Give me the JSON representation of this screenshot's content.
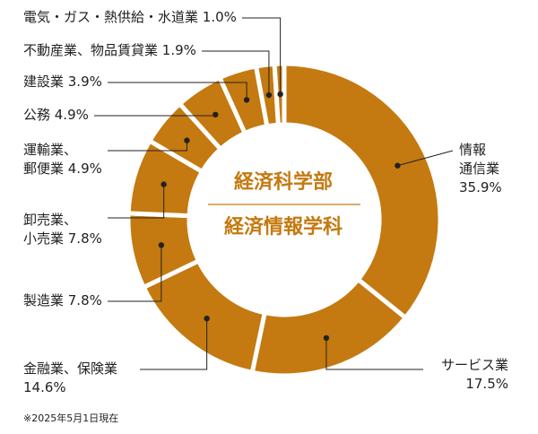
{
  "chart_data": {
    "type": "pie",
    "donut": true,
    "center_title_1": "経済科学部",
    "center_title_2": "経済情報学科",
    "slices": [
      {
        "label_lines": [
          "情報",
          "通信業",
          "35.9%"
        ],
        "value": 35.9
      },
      {
        "label_lines": [
          "サービス業",
          "17.5%"
        ],
        "value": 17.5
      },
      {
        "label_lines": [
          "金融業、保険業",
          "14.6%"
        ],
        "value": 14.6
      },
      {
        "label_lines": [
          "製造業 7.8%"
        ],
        "value": 7.8
      },
      {
        "label_lines": [
          "卸売業、",
          "小売業 7.8%"
        ],
        "value": 7.8
      },
      {
        "label_lines": [
          "運輸業、",
          "郵便業 4.9%"
        ],
        "value": 4.9
      },
      {
        "label_lines": [
          "公務 4.9%"
        ],
        "value": 4.9
      },
      {
        "label_lines": [
          "建設業 3.9%"
        ],
        "value": 3.9
      },
      {
        "label_lines": [
          "不動産業、物品賃貸業 1.9%"
        ],
        "value": 1.9
      },
      {
        "label_lines": [
          "電気・ガス・熱供給・水道業 1.0%"
        ],
        "value": 1.0
      }
    ],
    "colors": {
      "slice": "#c47a10",
      "separator": "#ffffff",
      "center_text": "#c47a10",
      "leader": "#222222"
    }
  },
  "footnote": "※2025年5月1日現在"
}
